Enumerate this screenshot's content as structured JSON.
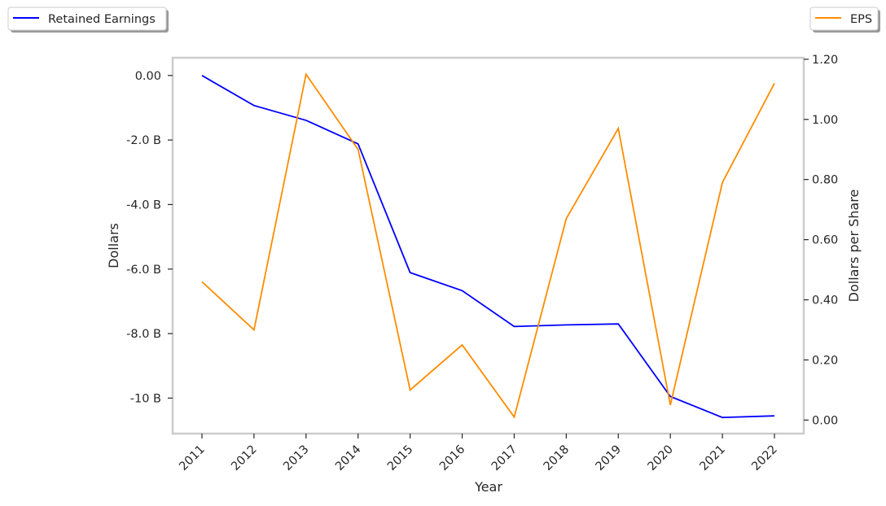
{
  "chart_data": {
    "type": "line",
    "x": [
      "2011",
      "2012",
      "2013",
      "2014",
      "2015",
      "2016",
      "2017",
      "2018",
      "2019",
      "2020",
      "2021",
      "2022"
    ],
    "xlabel": "Year",
    "ylabel_left": "Dollars",
    "ylabel_right": "Dollars per Share",
    "left_axis": {
      "ylim": [
        -11.1,
        0.55
      ],
      "ticks": [
        0,
        -2,
        -4,
        -6,
        -8,
        -10
      ],
      "tick_labels": [
        "0.00",
        "-2.0 B",
        "-4.0 B",
        "-6.0 B",
        "-8.0 B",
        "-10 B"
      ],
      "unit": "billions of dollars"
    },
    "right_axis": {
      "ylim": [
        -0.045,
        1.205
      ],
      "ticks": [
        0,
        0.2,
        0.4,
        0.6,
        0.8,
        1.0,
        1.2
      ],
      "tick_labels": [
        "0.00",
        "0.20",
        "0.40",
        "0.60",
        "0.80",
        "1.00",
        "1.20"
      ]
    },
    "series": [
      {
        "name": "Retained Earnings",
        "axis": "left",
        "color": "#0000ff",
        "values": [
          0,
          -0.93,
          -1.39,
          -2.12,
          -6.11,
          -6.67,
          -7.78,
          -7.73,
          -7.7,
          -9.95,
          -10.6,
          -10.55
        ]
      },
      {
        "name": "EPS",
        "axis": "right",
        "color": "#ff8c00",
        "values": [
          0.46,
          0.3,
          1.15,
          0.9,
          0.1,
          0.25,
          0.01,
          0.67,
          0.97,
          0.05,
          0.79,
          1.12
        ]
      }
    ],
    "grid": false,
    "legend": [
      "top-left",
      "top-right"
    ]
  }
}
